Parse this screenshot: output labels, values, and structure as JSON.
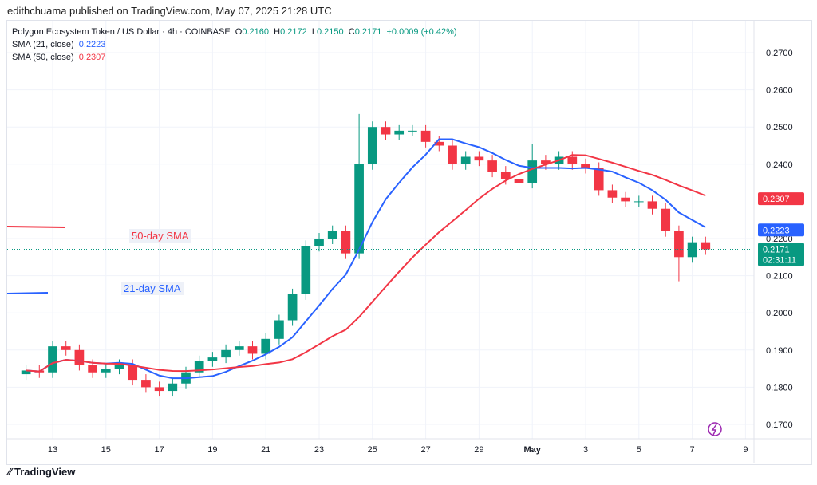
{
  "publisher": "edithchuama published on TradingView.com, May 07, 2025 21:28 UTC",
  "legend": {
    "symbol": "Polygon Ecosystem Token / US Dollar · 4h · COINBASE",
    "o": "0.2160",
    "h": "0.2172",
    "l": "0.2150",
    "c": "0.2171",
    "change": "+0.0009 (+0.42%)",
    "sma21_label": "SMA (21, close)",
    "sma21_value": "0.2223",
    "sma50_label": "SMA (50, close)",
    "sma50_value": "0.2307"
  },
  "annotations": {
    "sma50": "50-day SMA",
    "sma21": "21-day SMA"
  },
  "badges": {
    "sma50": "0.2307",
    "sma21": "0.2223",
    "price": "0.2171",
    "countdown": "02:31:11"
  },
  "footer": "TradingView",
  "colors": {
    "up": "#089981",
    "down": "#f23645",
    "sma21": "#2962ff",
    "sma50": "#f23645"
  },
  "chart_data": {
    "type": "candlestick",
    "title": "Polygon Ecosystem Token / US Dollar · 4h · COINBASE",
    "ylim": [
      0.165,
      0.275
    ],
    "y_ticks": [
      "0.2700",
      "0.2600",
      "0.2500",
      "0.2400",
      "0.2200",
      "0.2100",
      "0.2000",
      "0.1900",
      "0.1800",
      "0.1700"
    ],
    "x_ticks": [
      "13",
      "15",
      "17",
      "19",
      "21",
      "23",
      "25",
      "27",
      "29",
      "May",
      "3",
      "5",
      "7",
      "9"
    ],
    "start_day": 12,
    "candle_days": 0.5,
    "closes": [
      0.1845,
      0.184,
      0.191,
      0.19,
      0.186,
      0.184,
      0.185,
      0.186,
      0.182,
      0.18,
      0.179,
      0.181,
      0.184,
      0.187,
      0.188,
      0.19,
      0.191,
      0.189,
      0.193,
      0.198,
      0.205,
      0.218,
      0.22,
      0.222,
      0.216,
      0.24,
      0.25,
      0.248,
      0.249,
      0.249,
      0.246,
      0.245,
      0.24,
      0.242,
      0.241,
      0.238,
      0.236,
      0.235,
      0.241,
      0.24,
      0.242,
      0.24,
      0.239,
      0.233,
      0.231,
      0.23,
      0.23,
      0.228,
      0.222,
      0.215,
      0.219,
      0.2171
    ],
    "sma21_window": 7,
    "sma50_window": 17
  }
}
